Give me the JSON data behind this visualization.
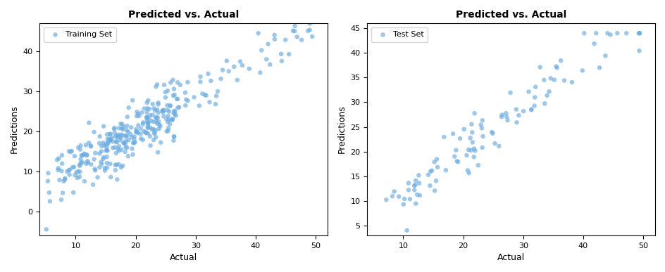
{
  "title": "Predicted vs. Actual",
  "xlabel": "Actual",
  "ylabel": "Predictions",
  "dot_color": "#6aabe0",
  "dot_alpha": 0.65,
  "dot_size": 22,
  "train_legend": "Training Set",
  "test_legend": "Test Set",
  "train_xlim": [
    4,
    52
  ],
  "train_ylim": [
    -6,
    47
  ],
  "test_xlim": [
    4,
    52
  ],
  "test_ylim": [
    3,
    46
  ],
  "train_xticks": [
    10,
    20,
    30,
    40,
    50
  ],
  "train_yticks": [
    0,
    10,
    20,
    30,
    40
  ],
  "test_xticks": [
    10,
    20,
    30,
    40,
    50
  ],
  "test_yticks": [
    5,
    10,
    15,
    20,
    25,
    30,
    35,
    40,
    45
  ]
}
